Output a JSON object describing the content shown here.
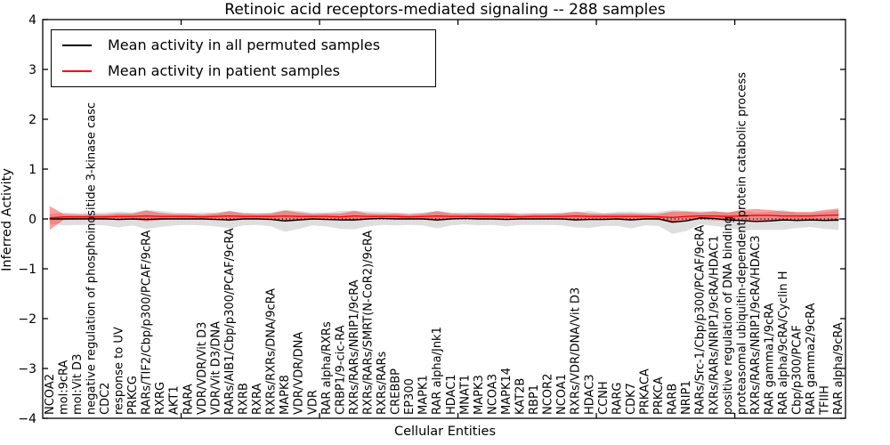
{
  "chart_data": {
    "type": "line",
    "title": "Retinoic acid receptors-mediated signaling -- 288 samples",
    "xlabel": "Cellular Entities",
    "ylabel": "Inferred Activity",
    "ylim": [
      -4,
      4
    ],
    "yticks": [
      -4,
      -3,
      -2,
      -1,
      0,
      1,
      2,
      3,
      4
    ],
    "xticks": [
      10,
      20,
      30,
      40,
      50
    ],
    "grid": false,
    "legend_position": "upper left",
    "zero_line": {
      "y": 0,
      "style": "dotted",
      "color": "#000000"
    },
    "categories": [
      "NCOA2",
      "mol:9cRA",
      "mol:Vit D3",
      "negative regulation of phosphoinositide 3-kinase casc",
      "CDC2",
      "response to UV",
      "PRKCG",
      "RARs/TIF2/Cbp/p300/PCAF/9cRA",
      "RXRG",
      "AKT1",
      "RARA",
      "VDR/VDR/Vit D3",
      "VDR/Vit D3/DNA",
      "RARs/AIB1/Cbp/p300/PCAF/9cRA",
      "RXRB",
      "RXRA",
      "RXRs/RXRs/DNA/9cRA",
      "MAPK8",
      "VDR/VDR/DNA",
      "VDR",
      "RAR alpha/RXRs",
      "CRBP1/9-cic-RA",
      "RXRs/RARs/NRIP1/9cRA",
      "RXRs/RARs/SMRT(N-CoR2)/9cRA",
      "RXRs/RARs",
      "CREBBP",
      "EP300",
      "MAPK1",
      "RAR alpha/Jnk1",
      "HDAC1",
      "MNAT1",
      "MAPK3",
      "NCOA3",
      "MAPK14",
      "KAT2B",
      "RBP1",
      "NCOR2",
      "NCOA1",
      "RXRs/VDR/DNA/Vit D3",
      "HDAC3",
      "CCNH",
      "RARG",
      "CDK7",
      "PRKACA",
      "PRKCA",
      "RARB",
      "NRIP1",
      "RARs/Src-1/Cbp/p300/PCAF/9cRA",
      "RXRs/RARs/NRIP1/9cRA/HDAC1",
      "positive regulation of DNA binding",
      "proteasomal ubiquitin-dependent protein catabolic process",
      "RXRs/RARs/NRIP1/9cRA/HDAC3",
      "RAR gamma1/9cRA",
      "RAR alpha/9cRA/Cyclin H",
      "Cbp/p300/PCAF",
      "RAR gamma2/9cRA",
      "TFIIH",
      "RAR alpha/9cRA"
    ],
    "series": [
      {
        "name": "Mean activity in all permuted samples",
        "color": "#000000",
        "band_color": "#000000",
        "band_opacity": 0.13,
        "values": [
          0,
          0,
          0,
          0,
          0,
          -0.01,
          0,
          -0.01,
          0,
          0,
          0,
          0,
          -0.01,
          -0.02,
          0,
          0,
          -0.01,
          -0.04,
          -0.02,
          0,
          -0.01,
          -0.02,
          -0.02,
          0,
          0.01,
          0,
          0,
          0,
          -0.02,
          0,
          0.01,
          0,
          0,
          -0.01,
          0,
          0,
          0,
          0,
          -0.02,
          -0.01,
          -0.01,
          0,
          -0.02,
          0,
          0,
          -0.06,
          -0.04,
          0.02,
          0.01,
          -0.02,
          -0.03,
          -0.05,
          -0.04,
          -0.02,
          -0.03,
          -0.02,
          -0.03,
          -0.02
        ],
        "band_halfwidth": [
          0.1,
          0.13,
          0.12,
          0.12,
          0.13,
          0.16,
          0.13,
          0.19,
          0.16,
          0.13,
          0.12,
          0.13,
          0.14,
          0.17,
          0.13,
          0.12,
          0.14,
          0.22,
          0.18,
          0.13,
          0.14,
          0.18,
          0.19,
          0.15,
          0.13,
          0.13,
          0.12,
          0.13,
          0.17,
          0.13,
          0.12,
          0.13,
          0.12,
          0.14,
          0.12,
          0.12,
          0.12,
          0.13,
          0.15,
          0.17,
          0.13,
          0.14,
          0.17,
          0.13,
          0.14,
          0.24,
          0.2,
          0.13,
          0.15,
          0.15,
          0.2,
          0.17,
          0.18,
          0.2,
          0.15,
          0.14,
          0.17,
          0.2
        ]
      },
      {
        "name": "Mean activity in patient samples",
        "color": "#ff0000",
        "band_color": "#ff0000",
        "band_opacity": 0.38,
        "values": [
          0.02,
          0.04,
          0.04,
          0.04,
          0.04,
          0.05,
          0.05,
          0.06,
          0.05,
          0.05,
          0.05,
          0.04,
          0.05,
          0.06,
          0.05,
          0.05,
          0.05,
          0.06,
          0.05,
          0.05,
          0.05,
          0.04,
          0.06,
          0.05,
          0.05,
          0.05,
          0.04,
          0.05,
          0.06,
          0.05,
          0.05,
          0.05,
          0.05,
          0.05,
          0.04,
          0.05,
          0.05,
          0.05,
          0.06,
          0.05,
          0.05,
          0.05,
          0.05,
          0.05,
          0.04,
          0.03,
          0.05,
          0.06,
          0.06,
          0.05,
          0.06,
          0.07,
          0.07,
          0.06,
          0.06,
          0.06,
          0.07,
          0.08
        ],
        "band_halfwidth": [
          0.24,
          0.06,
          0.05,
          0.05,
          0.05,
          0.06,
          0.06,
          0.11,
          0.07,
          0.05,
          0.05,
          0.05,
          0.06,
          0.1,
          0.06,
          0.05,
          0.06,
          0.11,
          0.08,
          0.05,
          0.06,
          0.07,
          0.1,
          0.06,
          0.05,
          0.06,
          0.05,
          0.06,
          0.1,
          0.06,
          0.05,
          0.06,
          0.05,
          0.06,
          0.05,
          0.05,
          0.05,
          0.06,
          0.09,
          0.06,
          0.05,
          0.06,
          0.06,
          0.05,
          0.06,
          0.12,
          0.1,
          0.07,
          0.09,
          0.08,
          0.12,
          0.13,
          0.11,
          0.09,
          0.08,
          0.08,
          0.11,
          0.13
        ]
      }
    ]
  }
}
